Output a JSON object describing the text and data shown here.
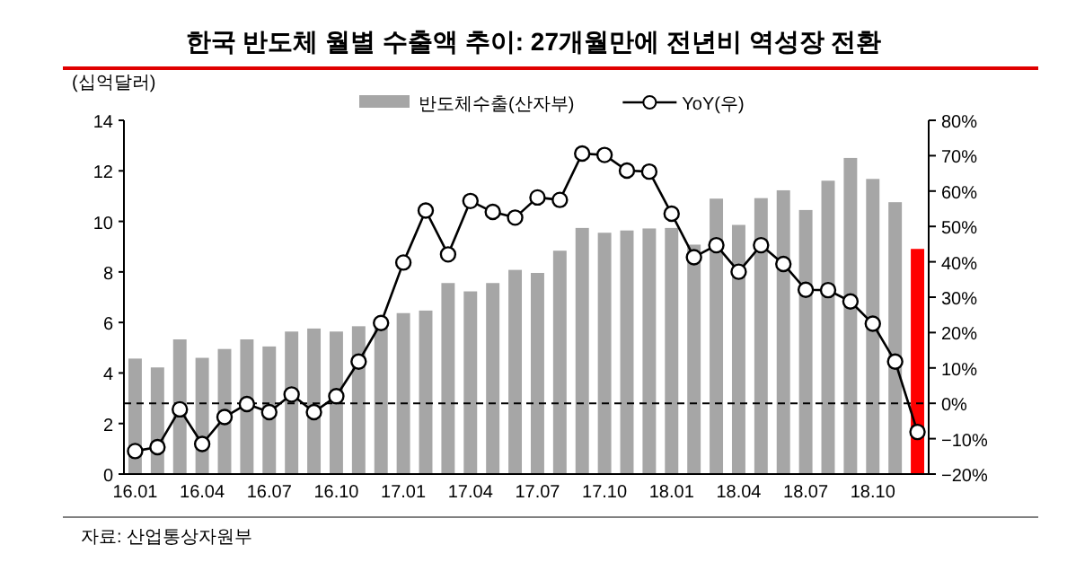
{
  "chart_data": {
    "type": "bar",
    "title": "한국 반도체 월별 수출액 추이: 27개월만에 전년비 역성장 전환",
    "ylabel": "(십억달러)",
    "categories": [
      "16.01",
      null,
      null,
      "16.04",
      null,
      null,
      "16.07",
      null,
      null,
      "16.10",
      null,
      null,
      "17.01",
      null,
      null,
      "17.04",
      null,
      null,
      "17.07",
      null,
      null,
      "17.10",
      null,
      null,
      "18.01",
      null,
      null,
      "18.04",
      null,
      null,
      "18.07",
      null,
      null,
      "18.10",
      null,
      null
    ],
    "series": [
      {
        "name": "반도체수출(산자부)",
        "color": "#a6a6a6",
        "colors": [
          "#a6a6a6",
          "#a6a6a6",
          "#a6a6a6",
          "#a6a6a6",
          "#a6a6a6",
          "#a6a6a6",
          "#a6a6a6",
          "#a6a6a6",
          "#a6a6a6",
          "#a6a6a6",
          "#a6a6a6",
          "#a6a6a6",
          "#a6a6a6",
          "#a6a6a6",
          "#a6a6a6",
          "#a6a6a6",
          "#a6a6a6",
          "#a6a6a6",
          "#a6a6a6",
          "#a6a6a6",
          "#a6a6a6",
          "#a6a6a6",
          "#a6a6a6",
          "#a6a6a6",
          "#a6a6a6",
          "#a6a6a6",
          "#a6a6a6",
          "#a6a6a6",
          "#a6a6a6",
          "#a6a6a6",
          "#a6a6a6",
          "#a6a6a6",
          "#a6a6a6",
          "#a6a6a6",
          "#a6a6a6",
          "#ff0000"
        ],
        "values": [
          4.57,
          4.22,
          5.33,
          4.6,
          4.95,
          5.33,
          5.05,
          5.64,
          5.76,
          5.64,
          5.85,
          6.0,
          6.37,
          6.47,
          7.56,
          7.23,
          7.56,
          8.08,
          7.96,
          8.84,
          9.74,
          9.55,
          9.64,
          9.72,
          9.74,
          9.08,
          10.9,
          9.86,
          10.92,
          11.23,
          10.45,
          11.61,
          12.51,
          11.68,
          10.76,
          8.91
        ]
      },
      {
        "name": "YoY(우)",
        "type": "line",
        "axis": "y2",
        "color": "#000000",
        "marker": "circle",
        "values": [
          -13.5,
          -12.4,
          -1.7,
          -11.5,
          -3.9,
          -0.2,
          -2.5,
          2.5,
          -2.5,
          2.0,
          11.8,
          22.7,
          39.8,
          54.5,
          42.1,
          57.2,
          54.1,
          52.5,
          58.2,
          57.5,
          70.6,
          70.2,
          65.8,
          65.5,
          53.6,
          41.3,
          44.7,
          37.2,
          44.7,
          39.4,
          32.1,
          32.0,
          28.8,
          22.5,
          11.8,
          -8.1
        ]
      }
    ],
    "ylim": [
      0,
      14
    ],
    "yticks": [
      0,
      2,
      4,
      6,
      8,
      10,
      12,
      14
    ],
    "y2lim": [
      -20,
      80
    ],
    "y2ticks": [
      {
        "value": -20,
        "label": "−20%"
      },
      {
        "value": -10,
        "label": "−10%"
      },
      {
        "value": 0,
        "label": "0%"
      },
      {
        "value": 10,
        "label": "10%"
      },
      {
        "value": 20,
        "label": "20%"
      },
      {
        "value": 30,
        "label": "30%"
      },
      {
        "value": 40,
        "label": "40%"
      },
      {
        "value": 50,
        "label": "50%"
      },
      {
        "value": 60,
        "label": "60%"
      },
      {
        "value": 70,
        "label": "70%"
      },
      {
        "value": 80,
        "label": "80%"
      }
    ],
    "ref_lines": [
      {
        "axis": "y2",
        "value": 0,
        "line_style": "dashed",
        "color": "#000000"
      }
    ],
    "legend": "top",
    "annotations": [
      "자료: 산업통상자원부"
    ]
  }
}
